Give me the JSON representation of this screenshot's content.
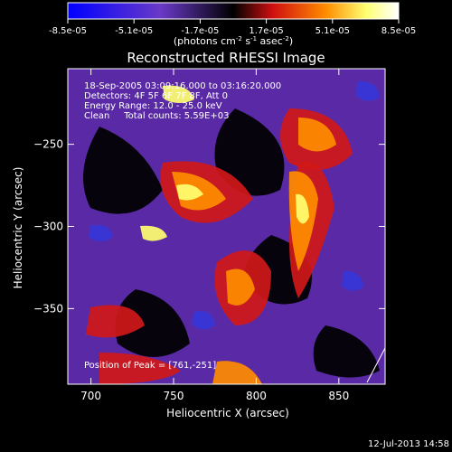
{
  "chart_data": {
    "type": "heatmap",
    "title": "Reconstructed RHESSI Image",
    "xlabel": "Heliocentric X (arcsec)",
    "ylabel": "Heliocentric Y (arcsec)",
    "xlim": [
      686,
      878
    ],
    "ylim": [
      -396,
      -204
    ],
    "x_ticks": [
      700,
      750,
      800,
      850
    ],
    "y_ticks": [
      -250,
      -300,
      -350
    ],
    "colorbar": {
      "ticks": [
        "-8.5e-05",
        "-5.1e-05",
        "-1.7e-05",
        "1.7e-05",
        "5.1e-05",
        "8.5e-05"
      ],
      "unit_main": "(photons cm",
      "unit_sup1": "-2",
      "unit_mid1": " s",
      "unit_sup2": "-1",
      "unit_mid2": " asec",
      "unit_sup3": "-2",
      "unit_end": ")",
      "range": [
        -8.5e-05,
        8.5e-05
      ],
      "colors": [
        "#0000ff",
        "#7b2fd0",
        "#000000",
        "#d01010",
        "#ff8c00",
        "#ffff80",
        "#ffffff"
      ]
    },
    "annotations": {
      "line1": "18-Sep-2005 03:09:16.000 to 03:16:20.000",
      "line2": "Detectors: 4F 5F 6F 7F 8F, Att 0",
      "line3": "Energy Range: 12.0 - 25.0 keV",
      "line4": "Clean     Total counts: 5.59E+03",
      "peak": "Position of Peak = [761,-251]"
    },
    "grid": false,
    "legend": "none"
  },
  "footer": {
    "date": "12-Jul-2013 14:58"
  }
}
